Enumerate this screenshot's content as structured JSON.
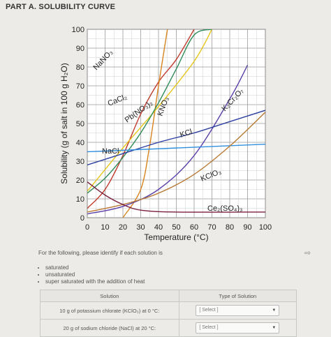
{
  "page": {
    "title": "PART A. SOLUBILITY CURVE",
    "instructions": "For the following, please identify if each solution is",
    "options": [
      "saturated",
      "unsaturated",
      "super saturated with the addition of heat"
    ],
    "table": {
      "headers": [
        "Solution",
        "Type of Solution"
      ],
      "rows": [
        {
          "solution": "10 g of potassium chlorate (KClO₃) at 0 °C:",
          "select": "[ Select ]"
        },
        {
          "solution": "20 g of sodium chloride (NaCl) at 20 °C:",
          "select": "[ Select ]"
        }
      ]
    }
  },
  "chart_data": {
    "type": "line",
    "xlabel": "Temperature (°C)",
    "ylabel": "Solubility (g of salt in 100 g H₂O)",
    "xlim": [
      0,
      100
    ],
    "ylim": [
      0,
      100
    ],
    "xticks": [
      0,
      10,
      20,
      30,
      40,
      50,
      60,
      70,
      80,
      90,
      100
    ],
    "yticks": [
      0,
      10,
      20,
      30,
      40,
      50,
      60,
      70,
      80,
      90,
      100
    ],
    "grid": true,
    "series": [
      {
        "name": "NaNO₃",
        "color": "#c0392b",
        "x": [
          0,
          10,
          20,
          30,
          40,
          50,
          60
        ],
        "y": [
          5,
          15,
          33,
          55,
          72,
          84,
          100
        ]
      },
      {
        "name": "CaCl₂",
        "color": "#d9831f",
        "x": [
          20,
          30,
          35,
          40,
          45
        ],
        "y": [
          0,
          15,
          38,
          70,
          100
        ]
      },
      {
        "name": "Pb(NO₃)₂",
        "color": "#e6c619",
        "x": [
          0,
          20,
          40,
          60,
          70
        ],
        "y": [
          14,
          37,
          59,
          83,
          100
        ]
      },
      {
        "name": "KNO₃",
        "color": "#2e8b57",
        "x": [
          0,
          10,
          20,
          30,
          40,
          50,
          60,
          70
        ],
        "y": [
          13,
          21,
          32,
          45,
          61,
          79,
          97,
          100
        ]
      },
      {
        "name": "K₂Cr₂O₇",
        "color": "#5b3fa8",
        "x": [
          0,
          20,
          40,
          60,
          80,
          90
        ],
        "y": [
          2,
          6,
          15,
          33,
          63,
          81
        ]
      },
      {
        "name": "KCl",
        "color": "#2b3fa0",
        "x": [
          0,
          20,
          40,
          60,
          80,
          100
        ],
        "y": [
          28,
          34,
          40,
          45,
          51,
          57
        ]
      },
      {
        "name": "NaCl",
        "color": "#2f8fde",
        "x": [
          0,
          100
        ],
        "y": [
          35,
          39
        ]
      },
      {
        "name": "KClO₃",
        "color": "#b87a34",
        "x": [
          0,
          20,
          40,
          60,
          80,
          100
        ],
        "y": [
          3,
          7,
          13,
          23,
          38,
          56
        ]
      },
      {
        "name": "Ce₂(SO₄)₃",
        "color": "#7a1f3c",
        "x": [
          0,
          10,
          20,
          30,
          50,
          100
        ],
        "y": [
          19,
          12,
          7,
          4,
          3,
          3
        ]
      }
    ],
    "labels": [
      {
        "text": "NaNO₃",
        "series": "NaNO₃"
      },
      {
        "text": "CaCl₂",
        "series": "CaCl₂"
      },
      {
        "text": "Pb(NO₃)₂",
        "series": "Pb(NO₃)₂"
      },
      {
        "text": "KNO₃",
        "series": "KNO₃"
      },
      {
        "text": "K₂Cr₂O₇",
        "series": "K₂Cr₂O₇"
      },
      {
        "text": "KCl",
        "series": "KCl"
      },
      {
        "text": "NaCl",
        "series": "NaCl"
      },
      {
        "text": "KClO₃",
        "series": "KClO₃"
      },
      {
        "text": "Ce₂(SO₄)₃",
        "series": "Ce₂(SO₄)₃"
      }
    ]
  }
}
